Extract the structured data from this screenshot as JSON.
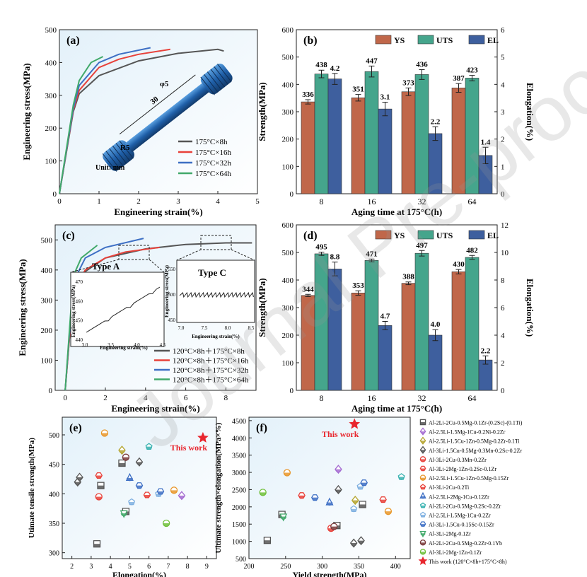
{
  "watermark": "Journal Pre-proof",
  "chart_data": [
    {
      "panel": "(a)",
      "type": "line",
      "xlabel": "Engineering strain(%)",
      "ylabel": "Engineering stress(MPa)",
      "xlim": [
        0,
        5
      ],
      "ylim": [
        0,
        500
      ],
      "xticks": [
        "0",
        "1",
        "2",
        "3",
        "4",
        "5"
      ],
      "yticks": [
        "0",
        "100",
        "200",
        "300",
        "400",
        "500"
      ],
      "series": [
        {
          "name": "175°C×8h",
          "color": "#555555",
          "points": [
            [
              0,
              0
            ],
            [
              0.35,
              250
            ],
            [
              0.5,
              305
            ],
            [
              1,
              360
            ],
            [
              2,
              405
            ],
            [
              3,
              428
            ],
            [
              4,
              440
            ],
            [
              4.15,
              435
            ]
          ]
        },
        {
          "name": "175°C×16h",
          "color": "#e8413a",
          "points": [
            [
              0,
              0
            ],
            [
              0.35,
              255
            ],
            [
              0.5,
              315
            ],
            [
              1,
              385
            ],
            [
              1.5,
              410
            ],
            [
              2,
              425
            ],
            [
              2.8,
              440
            ]
          ]
        },
        {
          "name": "175°C×32h",
          "color": "#3d6fc4",
          "points": [
            [
              0,
              0
            ],
            [
              0.35,
              260
            ],
            [
              0.5,
              330
            ],
            [
              1,
              400
            ],
            [
              1.5,
              425
            ],
            [
              2.3,
              445
            ]
          ]
        },
        {
          "name": "175°C×64h",
          "color": "#41a96a",
          "points": [
            [
              0,
              0
            ],
            [
              0.35,
              270
            ],
            [
              0.5,
              345
            ],
            [
              0.8,
              400
            ],
            [
              1.1,
              418
            ]
          ]
        }
      ],
      "inset": {
        "labels": [
          "30",
          "φ5",
          "R5",
          "Unit: mm"
        ]
      }
    },
    {
      "panel": "(b)",
      "type": "bar",
      "xlabel": "Aging time at 175°C(h)",
      "ylabel": "Strength(MPa)",
      "y2label": "Elongation(%)",
      "ylim": [
        0,
        600
      ],
      "y2lim": [
        0,
        6
      ],
      "yticks": [
        "0",
        "100",
        "200",
        "300",
        "400",
        "500",
        "600"
      ],
      "y2ticks": [
        "0",
        "1",
        "2",
        "3",
        "4",
        "5",
        "6"
      ],
      "categories": [
        "8",
        "16",
        "32",
        "64"
      ],
      "series": [
        {
          "name": "YS",
          "color": "#c0674a",
          "axis": "left",
          "values": [
            336,
            351,
            373,
            387
          ],
          "err": [
            8,
            12,
            14,
            16
          ]
        },
        {
          "name": "UTS",
          "color": "#45a58c",
          "axis": "left",
          "values": [
            438,
            447,
            436,
            423
          ],
          "err": [
            14,
            20,
            18,
            10
          ]
        },
        {
          "name": "EL",
          "color": "#3e5f9e",
          "axis": "right",
          "values": [
            4.2,
            3.1,
            2.2,
            1.4
          ],
          "err": [
            0.2,
            0.25,
            0.25,
            0.3
          ]
        }
      ],
      "labels": {
        "YS": [
          "336",
          "351",
          "373",
          "387"
        ],
        "UTS": [
          "438",
          "447",
          "436",
          "423"
        ],
        "EL": [
          "4.2",
          "3.1",
          "2.2",
          "1.4"
        ]
      }
    },
    {
      "panel": "(c)",
      "type": "line",
      "xlabel": "Engineering strain(%)",
      "ylabel": "Engineering stress(MPa)",
      "xlim": [
        -0.5,
        9.5
      ],
      "ylim": [
        0,
        550
      ],
      "xticks": [
        "0",
        "2",
        "4",
        "6",
        "8"
      ],
      "yticks": [
        "0",
        "100",
        "200",
        "300",
        "400",
        "500"
      ],
      "series": [
        {
          "name": "120°C×8h＋175°C×8h",
          "color": "#555555",
          "points": [
            [
              0,
              0
            ],
            [
              0.4,
              330
            ],
            [
              1,
              395
            ],
            [
              2,
              440
            ],
            [
              4,
              470
            ],
            [
              6,
              485
            ],
            [
              8,
              490
            ],
            [
              9.3,
              490
            ]
          ]
        },
        {
          "name": "120°C×8h＋175°C×16h",
          "color": "#e8413a",
          "points": [
            [
              0,
              0
            ],
            [
              0.4,
              335
            ],
            [
              1,
              400
            ],
            [
              2,
              440
            ],
            [
              3,
              460
            ],
            [
              4.7,
              475
            ]
          ]
        },
        {
          "name": "120°C×8h＋175°C×32h",
          "color": "#3d6fc4",
          "points": [
            [
              0,
              0
            ],
            [
              0.4,
              360
            ],
            [
              1,
              440
            ],
            [
              2,
              475
            ],
            [
              3.9,
              505
            ]
          ]
        },
        {
          "name": "120°C×8h＋175°C×64h",
          "color": "#41a96a",
          "points": [
            [
              0,
              0
            ],
            [
              0.4,
              380
            ],
            [
              0.8,
              440
            ],
            [
              1.6,
              482
            ]
          ]
        }
      ],
      "inset_a": {
        "title": "Type A",
        "xlabel": "Engineering strain(%)",
        "ylabel": "Engineering stress(MPa)",
        "xticks": [
          "3.0",
          "3.5",
          "4.0",
          "4.5"
        ],
        "yticks": [
          "440",
          "450",
          "460",
          "470"
        ]
      },
      "inset_c": {
        "title": "Type C",
        "xlabel": "Engineering strain(%)",
        "ylabel": "Engineering stress(MPa)",
        "xticks": [
          "7.0",
          "7.5",
          "8.0",
          "8.5"
        ],
        "yticks": [
          "450",
          "500",
          "550"
        ]
      }
    },
    {
      "panel": "(d)",
      "type": "bar",
      "xlabel": "Aging time at 175°C(h)",
      "ylabel": "Strength(MPa)",
      "y2label": "Elongation(%)",
      "ylim": [
        0,
        600
      ],
      "y2lim": [
        0,
        12
      ],
      "yticks": [
        "0",
        "100",
        "200",
        "300",
        "400",
        "500",
        "600"
      ],
      "y2ticks": [
        "0",
        "2",
        "4",
        "6",
        "8",
        "10",
        "12"
      ],
      "categories": [
        "8",
        "16",
        "32",
        "64"
      ],
      "series": [
        {
          "name": "YS",
          "color": "#c0674a",
          "axis": "left",
          "values": [
            344,
            353,
            388,
            430
          ],
          "err": [
            4,
            8,
            5,
            8
          ]
        },
        {
          "name": "UTS",
          "color": "#45a58c",
          "axis": "left",
          "values": [
            495,
            471,
            497,
            482
          ],
          "err": [
            6,
            5,
            10,
            7
          ]
        },
        {
          "name": "EL",
          "color": "#3e5f9e",
          "axis": "right",
          "values": [
            8.8,
            4.7,
            4.0,
            2.2
          ],
          "err": [
            0.5,
            0.3,
            0.4,
            0.3
          ]
        }
      ],
      "labels": {
        "YS": [
          "344",
          "353",
          "388",
          "430"
        ],
        "UTS": [
          "495",
          "471",
          "497",
          "482"
        ],
        "EL": [
          "8.8",
          "4.7",
          "4.0",
          "2.2"
        ]
      }
    },
    {
      "panel": "(e)",
      "type": "scatter",
      "xlabel": "Elongation(%)",
      "ylabel": "Utimate tensile strength(MPa)",
      "xlim": [
        1.5,
        9.5
      ],
      "ylim": [
        290,
        530
      ],
      "xticks": [
        "2",
        "3",
        "4",
        "5",
        "6",
        "7",
        "8",
        "9"
      ],
      "yticks": [
        "300",
        "350",
        "400",
        "450",
        "500"
      ],
      "annotation": "This work",
      "points": [
        {
          "s": 0,
          "x": 3.3,
          "y": 315
        },
        {
          "s": 0,
          "x": 3.5,
          "y": 414
        },
        {
          "s": 0,
          "x": 4.6,
          "y": 452
        },
        {
          "s": 0,
          "x": 4.8,
          "y": 370
        },
        {
          "s": 1,
          "x": 7.7,
          "y": 397
        },
        {
          "s": 2,
          "x": 4.6,
          "y": 474
        },
        {
          "s": 3,
          "x": 2.3,
          "y": 420
        },
        {
          "s": 3,
          "x": 2.4,
          "y": 428
        },
        {
          "s": 3,
          "x": 5.5,
          "y": 454
        },
        {
          "s": 4,
          "x": 3.4,
          "y": 395
        },
        {
          "s": 5,
          "x": 3.4,
          "y": 431
        },
        {
          "s": 5,
          "x": 5.9,
          "y": 398
        },
        {
          "s": 6,
          "x": 3.7,
          "y": 503
        },
        {
          "s": 6,
          "x": 7.3,
          "y": 406
        },
        {
          "s": 8,
          "x": 5.0,
          "y": 427
        },
        {
          "s": 9,
          "x": 6.0,
          "y": 480
        },
        {
          "s": 10,
          "x": 5.1,
          "y": 386
        },
        {
          "s": 10,
          "x": 6.5,
          "y": 400
        },
        {
          "s": 11,
          "x": 5.5,
          "y": 414
        },
        {
          "s": 11,
          "x": 6.6,
          "y": 404
        },
        {
          "s": 12,
          "x": 4.7,
          "y": 367
        },
        {
          "s": 13,
          "x": 4.8,
          "y": 462
        },
        {
          "s": 14,
          "x": 6.9,
          "y": 350
        },
        {
          "s": 15,
          "x": 8.8,
          "y": 495
        }
      ]
    },
    {
      "panel": "(f)",
      "type": "scatter",
      "xlabel": "Yield strength(MPa)",
      "ylabel": "Ultimate strength×elongation(MPa×%)",
      "xlim": [
        200,
        420
      ],
      "ylim": [
        500,
        4600
      ],
      "xticks": [
        "200",
        "250",
        "300",
        "350",
        "400"
      ],
      "yticks": [
        "500",
        "1000",
        "1500",
        "2000",
        "2500",
        "3000",
        "3500",
        "4000",
        "4500"
      ],
      "annotation": "This work",
      "points": [
        {
          "s": 0,
          "x": 225,
          "y": 1030
        },
        {
          "s": 0,
          "x": 320,
          "y": 1460
        },
        {
          "s": 0,
          "x": 355,
          "y": 2070
        },
        {
          "s": 0,
          "x": 245,
          "y": 1780
        },
        {
          "s": 1,
          "x": 322,
          "y": 3090
        },
        {
          "s": 2,
          "x": 345,
          "y": 2190
        },
        {
          "s": 3,
          "x": 343,
          "y": 950
        },
        {
          "s": 3,
          "x": 353,
          "y": 1020
        },
        {
          "s": 3,
          "x": 322,
          "y": 2500
        },
        {
          "s": 4,
          "x": 312,
          "y": 1380
        },
        {
          "s": 5,
          "x": 272,
          "y": 2330
        },
        {
          "s": 5,
          "x": 383,
          "y": 2210
        },
        {
          "s": 6,
          "x": 252,
          "y": 2990
        },
        {
          "s": 6,
          "x": 390,
          "y": 1870
        },
        {
          "s": 8,
          "x": 310,
          "y": 2130
        },
        {
          "s": 9,
          "x": 408,
          "y": 2870
        },
        {
          "s": 10,
          "x": 343,
          "y": 1940
        },
        {
          "s": 10,
          "x": 352,
          "y": 2590
        },
        {
          "s": 11,
          "x": 290,
          "y": 2270
        },
        {
          "s": 11,
          "x": 357,
          "y": 2700
        },
        {
          "s": 12,
          "x": 247,
          "y": 1720
        },
        {
          "s": 13,
          "x": 316,
          "y": 1430
        },
        {
          "s": 14,
          "x": 219,
          "y": 2420
        },
        {
          "s": 15,
          "x": 344,
          "y": 4400
        }
      ]
    }
  ],
  "legend_ef": [
    {
      "label": "Al-2Li-2Cu-0.5Mg-0.1Zr-(0.2Sc)-(0.1Ti)",
      "marker": "square",
      "color": "#555555"
    },
    {
      "label": "Al-2.5Li-1.5Mg-1Cu-0.2Ni-0.2Zr",
      "marker": "diamond",
      "color": "#a46bd1"
    },
    {
      "label": "Al-2.5Li-1.5Cu-1Zn-0.5Mg-0.2Zr-0.1Ti",
      "marker": "diamond",
      "color": "#b5a530"
    },
    {
      "label": "Al-3Li-1.5Cu-0.5Mg-0.3Mn-0.2Sc-0.2Zr",
      "marker": "diamond",
      "color": "#555555"
    },
    {
      "label": "Al-3Li-2Cu-0.3Mn-0.2Zr",
      "marker": "circle",
      "color": "#e8413a"
    },
    {
      "label": "Al-3Li-2Mg-1Zn-0.2Sc-0.1Zr",
      "marker": "hexagon",
      "color": "#e8413a"
    },
    {
      "label": "Al-2.5Li-1.5Cu-1Zn-0.5Mg-0.15Zr",
      "marker": "circle",
      "color": "#e8962a"
    },
    {
      "label": "Al-3Li-2Cu-0.2Ti",
      "marker": "pentagon",
      "color": "#e8413a"
    },
    {
      "label": "Al-2.5Li-2Mg-1Cu-0.12Zr",
      "marker": "triangle",
      "color": "#3d6fc4"
    },
    {
      "label": "Al-2Li-2Cu-0.5Mg-0.2Sc-0.2Zr",
      "marker": "pentagon",
      "color": "#38b2b0"
    },
    {
      "label": "Al-2.5Li-1.5Mg-1Cu-0.2Zr",
      "marker": "pentagon",
      "color": "#7fb0e0"
    },
    {
      "label": "Al-3Li-1.5Cu-0.15Sc-0.15Zr",
      "marker": "hexagon",
      "color": "#3d6fc4"
    },
    {
      "label": "Al-3Li-2Mg-0.1Zr",
      "marker": "triangle-down",
      "color": "#41a96a"
    },
    {
      "label": "Al-2Li-2Cu-0.5Mg-0.2Zr-0.1Yb",
      "marker": "circle",
      "color": "#7a3a3a"
    },
    {
      "label": "Al-3Li-2Mg-1Zn-0.1Zr",
      "marker": "circle",
      "color": "#6fbf3a"
    },
    {
      "label": "This work (120°C×8h+175°C×8h)",
      "marker": "star",
      "color": "#e8262e"
    }
  ]
}
